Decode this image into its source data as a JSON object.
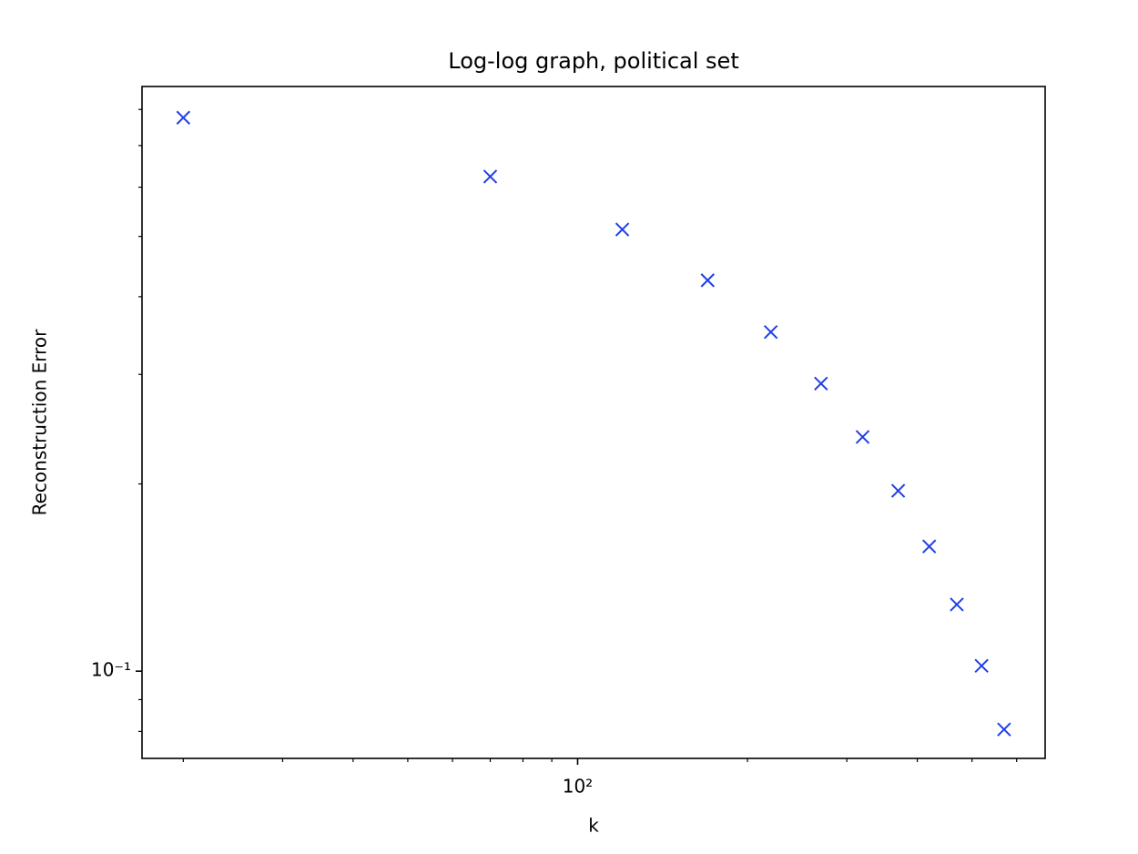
{
  "chart_data": {
    "type": "scatter",
    "title": "Log-log graph, political set",
    "x_label": "k",
    "y_label": "Reconstruction Error",
    "x": [
      20,
      70,
      120,
      170,
      220,
      270,
      320,
      370,
      420,
      470,
      520,
      570
    ],
    "series": [
      {
        "color": "#1f3fe8",
        "marker": "x",
        "values": [
          0.776,
          0.624,
          0.513,
          0.425,
          0.351,
          0.29,
          0.238,
          0.195,
          0.1587,
          0.128,
          0.102,
          0.0806
        ]
      }
    ],
    "xscale": "log",
    "yscale": "log",
    "xlim": [
      16.9,
      674
    ],
    "ylim": [
      0.0724,
      0.871
    ],
    "xticks": [
      {
        "value": 100,
        "label": "10²"
      }
    ],
    "yticks": [
      {
        "value": 0.1,
        "label": "10⁻¹"
      }
    ],
    "xminorticks": [
      20,
      30,
      40,
      50,
      60,
      70,
      80,
      90,
      200,
      300,
      400,
      500,
      600
    ],
    "yminorticks": [
      0.08,
      0.09,
      0.2,
      0.3,
      0.4,
      0.5,
      0.6,
      0.7,
      0.8
    ],
    "grid": false
  }
}
